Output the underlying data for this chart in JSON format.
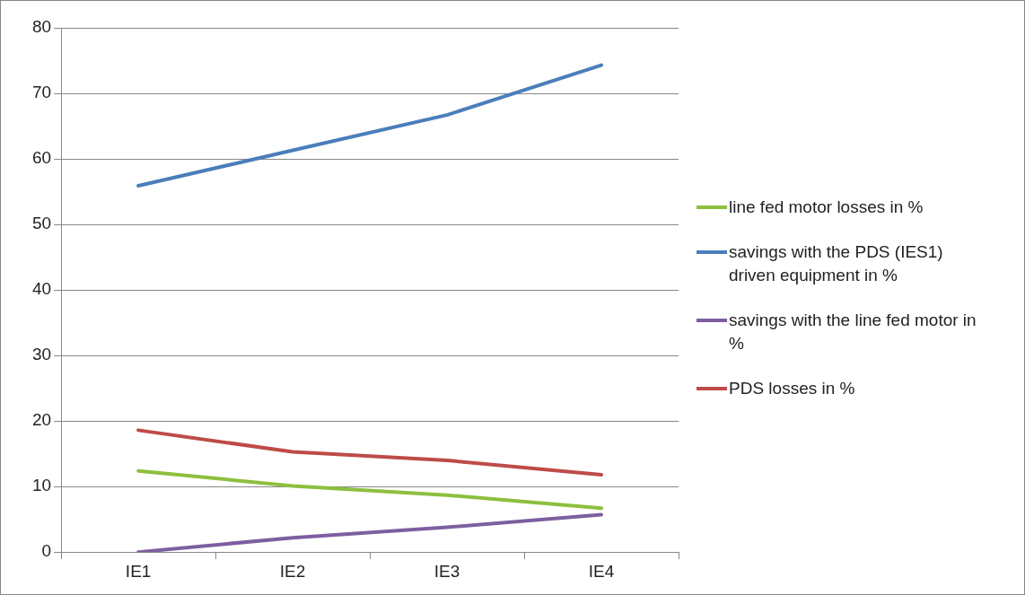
{
  "chart_data": {
    "type": "line",
    "categories": [
      "IE1",
      "IE2",
      "IE3",
      "IE4"
    ],
    "series": [
      {
        "name": "line fed motor losses in %",
        "color": "#8cbf3f",
        "values": [
          12.4,
          10.1,
          8.7,
          6.7
        ]
      },
      {
        "name": "savings with the PDS (IES1) driven equipment in %",
        "color": "#4a7ebb",
        "values": [
          55.9,
          61.3,
          66.7,
          74.3
        ]
      },
      {
        "name": "savings with the line fed motor in %",
        "color": "#7d5fa0",
        "values": [
          0,
          2.2,
          3.8,
          5.7
        ]
      },
      {
        "name": "PDS losses in %",
        "color": "#be4b48",
        "values": [
          18.6,
          15.3,
          14.0,
          11.8
        ]
      }
    ],
    "ylim": [
      0,
      80
    ],
    "yticks": [
      0,
      10,
      20,
      30,
      40,
      50,
      60,
      70,
      80
    ],
    "grid": "y",
    "legend": "right",
    "marker": "none",
    "line_style": "solid"
  }
}
